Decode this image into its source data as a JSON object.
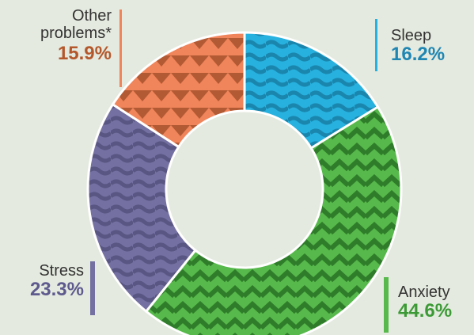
{
  "chart_data": {
    "type": "pie",
    "variant": "donut",
    "slices": [
      {
        "label": "Sleep",
        "value": 16.2,
        "value_label": "16.2%",
        "color": "#27b1df",
        "dark": "#1a86ae",
        "pattern": "waves"
      },
      {
        "label": "Anxiety",
        "value": 44.6,
        "value_label": "44.6%",
        "color": "#57b94b",
        "dark": "#2f7d2a",
        "pattern": "zigzag"
      },
      {
        "label": "Stress",
        "value": 23.3,
        "value_label": "23.3%",
        "color": "#7470a2",
        "dark": "#5a5683",
        "pattern": "waves"
      },
      {
        "label": "Other problems*",
        "label_lines": [
          "Other",
          "problems*"
        ],
        "value": 15.9,
        "value_label": "15.9%",
        "color": "#f0845a",
        "dark": "#b25a34",
        "pattern": "triangles"
      }
    ],
    "label_colors": {
      "Sleep": "#1f86b3",
      "Anxiety": "#3c9a36",
      "Stress": "#5e5a8e",
      "Other problems*": "#b4582c"
    },
    "background": "#e4eadf"
  }
}
